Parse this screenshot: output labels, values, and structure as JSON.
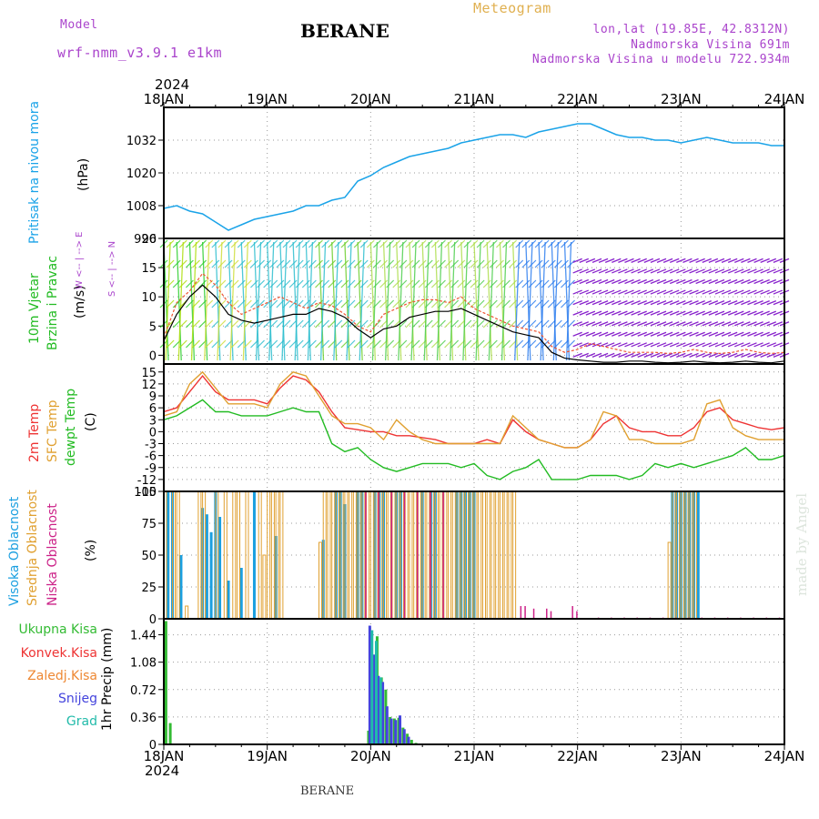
{
  "header": {
    "model_label": "Model",
    "model_name": "wrf-nmm_v3.9.1 e1km",
    "title": "BERANE",
    "meteogram_label": "Meteogram",
    "lonlat": "lon,lat (19.85E, 42.8312N)",
    "elevation": "Nadmorska Visina 691m",
    "model_elevation": "Nadmorska Visina u modelu 722.934m",
    "top_year": "2024",
    "bottom_year": "2024",
    "bottom_station": "BERANE",
    "watermark": "made by Angel"
  },
  "colors": {
    "pressure": "#1aa3e8",
    "wind_label": "#22bb22",
    "wind_dir": "#aa44cc",
    "temp_2m": "#ee3333",
    "temp_sfc": "#e0a030",
    "dewpoint": "#22bb22",
    "cloud_high": "#1a9fe0",
    "cloud_mid": "#e0a030",
    "cloud_low": "#cc2288",
    "rain_total": "#33bb33",
    "rain_conv": "#ee3333",
    "rain_strat": "#ee8833",
    "snow": "#4444dd",
    "graupel": "#22bbaa"
  },
  "x_axis": {
    "labels": [
      "18JAN",
      "19JAN",
      "20JAN",
      "21JAN",
      "22JAN",
      "23JAN",
      "24JAN"
    ]
  },
  "panels": {
    "pressure": {
      "label": "Pritisak na nivou mora",
      "unit": "(hPa)",
      "ticks": [
        "996",
        "1008",
        "1020",
        "1032"
      ]
    },
    "wind": {
      "label1": "10m Vjetar",
      "label2": "Brzina i Pravac",
      "unit": "(m/s)",
      "ticks": [
        "0",
        "5",
        "10",
        "15",
        "20"
      ],
      "compass": "W  <-- | --> E",
      "compass2": "S <-- | --> N"
    },
    "temperature": {
      "label1": "2m Temp",
      "label2": "SFC Temp",
      "label3": "dewpt Temp",
      "unit": "(C)",
      "ticks": [
        "-15",
        "-12",
        "-9",
        "-6",
        "-3",
        "0",
        "3",
        "6",
        "9",
        "12",
        "15"
      ]
    },
    "clouds": {
      "label1": "Visoka Oblacnost",
      "label2": "Srednja Oblacnost",
      "label3": "Niska Oblacnost",
      "unit": "(%)",
      "ticks": [
        "0",
        "25",
        "50",
        "75",
        "100"
      ]
    },
    "precip": {
      "unit": "1hr Precip (mm)",
      "ticks": [
        "0",
        "0.36",
        "0.72",
        "1.08",
        "1.44"
      ],
      "legend": [
        "Ukupna Kisa",
        "Konvek.Kisa",
        "Zaledj.Kisa",
        "Snijeg",
        "Grad"
      ]
    }
  },
  "chart_data": [
    {
      "type": "line",
      "title": "Pritisak na nivou mora",
      "ylabel": "(hPa)",
      "x_unit": "hours since 18JAN 00h",
      "ylim": [
        996,
        1044
      ],
      "series": [
        {
          "name": "Pritisak na nivou mora",
          "x": [
            0,
            3,
            6,
            9,
            12,
            15,
            18,
            21,
            24,
            27,
            30,
            33,
            36,
            39,
            42,
            45,
            48,
            51,
            54,
            57,
            60,
            63,
            66,
            69,
            72,
            75,
            78,
            81,
            84,
            87,
            90,
            93,
            96,
            99,
            102,
            105,
            108,
            111,
            114,
            117,
            120,
            123,
            126,
            129,
            132,
            135,
            138,
            141,
            144
          ],
          "values": [
            1007,
            1008,
            1006,
            1005,
            1002,
            999,
            1001,
            1003,
            1004,
            1005,
            1006,
            1008,
            1008,
            1010,
            1011,
            1017,
            1019,
            1022,
            1024,
            1026,
            1027,
            1028,
            1029,
            1031,
            1032,
            1033,
            1034,
            1034,
            1033,
            1035,
            1036,
            1037,
            1038,
            1038,
            1036,
            1034,
            1033,
            1033,
            1032,
            1032,
            1031,
            1032,
            1033,
            1032,
            1031,
            1031,
            1031,
            1030,
            1030
          ]
        }
      ]
    },
    {
      "type": "line",
      "title": "10m Vjetar Brzina i Pravac",
      "ylabel": "(m/s)",
      "x_unit": "hours since 18JAN 00h",
      "ylim": [
        -1.5,
        20
      ],
      "series": [
        {
          "name": "speed",
          "x": [
            0,
            3,
            6,
            9,
            12,
            15,
            18,
            21,
            24,
            27,
            30,
            33,
            36,
            39,
            42,
            45,
            48,
            51,
            54,
            57,
            60,
            63,
            66,
            69,
            72,
            75,
            78,
            81,
            84,
            87,
            90,
            93,
            96,
            99,
            102,
            105,
            108,
            111,
            114,
            117,
            120,
            123,
            126,
            129,
            132,
            135,
            138,
            141,
            144
          ],
          "values": [
            2.5,
            7,
            10,
            12,
            10,
            7,
            6,
            5.5,
            6,
            6.5,
            7,
            7,
            8,
            7.5,
            6.5,
            4.5,
            3,
            4.5,
            5,
            6.5,
            7,
            7.5,
            7.5,
            8,
            7,
            6,
            5,
            4,
            3.5,
            3,
            0.5,
            -0.5,
            -0.8,
            -1,
            -1.2,
            -1.2,
            -1,
            -1,
            -1.2,
            -1.3,
            -1.2,
            -1,
            -1.2,
            -1.3,
            -1.2,
            -1,
            -1.2,
            -1.3,
            -1
          ]
        },
        {
          "name": "gust",
          "x": [
            0,
            3,
            6,
            9,
            12,
            15,
            18,
            21,
            24,
            27,
            30,
            33,
            36,
            39,
            42,
            45,
            48,
            51,
            54,
            57,
            60,
            63,
            66,
            69,
            72,
            75,
            78,
            81,
            84,
            87,
            90,
            93,
            96,
            99,
            102,
            105,
            108,
            111,
            114,
            117,
            120,
            123,
            126,
            129,
            132,
            135,
            138,
            141,
            144
          ],
          "values": [
            3,
            9,
            11,
            14,
            12,
            9,
            7,
            8,
            9,
            10,
            9,
            8,
            9,
            8.5,
            7,
            5,
            4,
            7,
            8,
            9,
            9.5,
            9.5,
            9,
            10,
            8,
            7,
            6,
            5,
            4.5,
            4,
            1.5,
            0.5,
            1,
            2,
            1.5,
            1,
            0.5,
            0.5,
            0.5,
            0.3,
            0.5,
            1,
            0.5,
            0.3,
            0.5,
            1,
            0.5,
            0.3,
            0.5
          ]
        }
      ]
    },
    {
      "type": "line",
      "title": "2m Temp / SFC Temp / dewpt Temp",
      "ylabel": "(C)",
      "x_unit": "hours since 18JAN 00h",
      "ylim": [
        -15,
        17
      ],
      "series": [
        {
          "name": "2m Temp",
          "x": [
            0,
            3,
            6,
            9,
            12,
            15,
            18,
            21,
            24,
            27,
            30,
            33,
            36,
            39,
            42,
            45,
            48,
            51,
            54,
            57,
            60,
            63,
            66,
            69,
            72,
            75,
            78,
            81,
            84,
            87,
            90,
            93,
            96,
            99,
            102,
            105,
            108,
            111,
            114,
            117,
            120,
            123,
            126,
            129,
            132,
            135,
            138,
            141,
            144
          ],
          "values": [
            5,
            6,
            10,
            14,
            10,
            8,
            8,
            8,
            7,
            11,
            14,
            13,
            10,
            5,
            1,
            0.5,
            0,
            0,
            -1,
            -1,
            -1.5,
            -2,
            -3,
            -3,
            -3,
            -2,
            -3,
            3,
            0,
            -2,
            -3,
            -4,
            -4,
            -2,
            2,
            4,
            1,
            0,
            0,
            -1,
            -1,
            1,
            5,
            6,
            3,
            2,
            1,
            0.5,
            1
          ]
        },
        {
          "name": "SFC Temp",
          "x": [
            0,
            3,
            6,
            9,
            12,
            15,
            18,
            21,
            24,
            27,
            30,
            33,
            36,
            39,
            42,
            45,
            48,
            51,
            54,
            57,
            60,
            63,
            66,
            69,
            72,
            75,
            78,
            81,
            84,
            87,
            90,
            93,
            96,
            99,
            102,
            105,
            108,
            111,
            114,
            117,
            120,
            123,
            126,
            129,
            132,
            135,
            138,
            141,
            144
          ],
          "values": [
            4,
            5,
            12,
            15,
            11,
            7,
            7,
            7,
            6,
            12,
            15,
            14,
            9,
            4,
            2,
            2,
            1,
            -2,
            3,
            0,
            -2,
            -3,
            -3,
            -3,
            -3,
            -3,
            -3,
            4,
            1,
            -2,
            -3,
            -4,
            -4,
            -2,
            5,
            4,
            -2,
            -2,
            -3,
            -3,
            -3,
            -2,
            7,
            8,
            1,
            -1,
            -2,
            -2,
            -2
          ]
        },
        {
          "name": "dewpt Temp",
          "x": [
            0,
            3,
            6,
            9,
            12,
            15,
            18,
            21,
            24,
            27,
            30,
            33,
            36,
            39,
            42,
            45,
            48,
            51,
            54,
            57,
            60,
            63,
            66,
            69,
            72,
            75,
            78,
            81,
            84,
            87,
            90,
            93,
            96,
            99,
            102,
            105,
            108,
            111,
            114,
            117,
            120,
            123,
            126,
            129,
            132,
            135,
            138,
            141,
            144
          ],
          "values": [
            3,
            4,
            6,
            8,
            5,
            5,
            4,
            4,
            4,
            5,
            6,
            5,
            5,
            -3,
            -5,
            -4,
            -7,
            -9,
            -10,
            -9,
            -8,
            -8,
            -8,
            -9,
            -8,
            -11,
            -12,
            -10,
            -9,
            -7,
            -12,
            -12,
            -12,
            -11,
            -11,
            -11,
            -12,
            -11,
            -8,
            -9,
            -8,
            -9,
            -8,
            -7,
            -6,
            -4,
            -7,
            -7,
            -6
          ]
        }
      ]
    },
    {
      "type": "bar",
      "title": "Visoka / Srednja / Niska Oblacnost",
      "ylabel": "(%)",
      "x_unit": "hours since 18JAN 00h",
      "ylim": [
        0,
        100
      ],
      "series": [
        {
          "name": "Visoka Oblacnost",
          "x": [
            1,
            2,
            4,
            9,
            10,
            11,
            12,
            13,
            15,
            18,
            21,
            26,
            37,
            40,
            41,
            42,
            45,
            46,
            49,
            50,
            51,
            54,
            55,
            60,
            62,
            63,
            68,
            69,
            70,
            71,
            72,
            118,
            119,
            120,
            121,
            122,
            123,
            124
          ],
          "values": [
            100,
            100,
            50,
            87,
            82,
            68,
            100,
            80,
            30,
            40,
            100,
            65,
            62,
            100,
            100,
            90,
            100,
            100,
            100,
            100,
            100,
            100,
            100,
            100,
            100,
            100,
            100,
            100,
            100,
            100,
            100,
            100,
            100,
            100,
            100,
            100,
            100,
            100
          ]
        },
        {
          "name": "Srednja Oblacnost",
          "x": [
            0,
            2,
            3,
            5,
            8,
            9,
            12,
            14,
            16,
            17,
            19,
            22,
            23,
            24,
            25,
            26,
            27,
            36,
            37,
            38,
            39,
            40,
            41,
            42,
            43,
            44,
            45,
            46,
            47,
            48,
            49,
            50,
            51,
            52,
            53,
            54,
            55,
            56,
            57,
            58,
            59,
            60,
            61,
            62,
            63,
            64,
            65,
            66,
            67,
            68,
            69,
            70,
            71,
            72,
            73,
            74,
            75,
            76,
            77,
            78,
            79,
            80,
            81,
            117,
            118,
            119,
            120,
            121,
            122,
            123
          ],
          "values": [
            100,
            100,
            100,
            10,
            100,
            100,
            100,
            100,
            100,
            100,
            100,
            100,
            50,
            100,
            100,
            100,
            100,
            60,
            100,
            100,
            100,
            100,
            100,
            100,
            100,
            100,
            100,
            100,
            100,
            100,
            100,
            100,
            100,
            100,
            100,
            100,
            100,
            100,
            100,
            100,
            100,
            100,
            100,
            100,
            100,
            100,
            100,
            100,
            100,
            100,
            100,
            100,
            100,
            100,
            100,
            100,
            100,
            100,
            100,
            100,
            100,
            100,
            100,
            60,
            100,
            100,
            100,
            100,
            100,
            100
          ]
        },
        {
          "name": "Niska Oblacnost",
          "x": [
            47,
            50,
            53,
            56,
            59,
            62,
            65,
            83,
            84,
            86,
            89,
            90,
            95,
            96,
            101,
            104,
            107,
            110,
            113,
            116,
            119,
            122,
            125,
            128,
            131,
            134,
            137,
            140,
            143
          ],
          "values": [
            100,
            100,
            100,
            100,
            100,
            100,
            100,
            10,
            10,
            8,
            8,
            6,
            10,
            6,
            1,
            1,
            1,
            1,
            1,
            1,
            1,
            1,
            1,
            1,
            1,
            1,
            1,
            1,
            1
          ]
        }
      ]
    },
    {
      "type": "bar",
      "title": "1hr Precip",
      "ylabel": "1hr Precip (mm)",
      "x_unit": "hours since 18JAN 00h",
      "ylim": [
        0,
        1.65
      ],
      "series": [
        {
          "name": "Ukupna Kisa",
          "x": [
            0.5,
            1.5,
            47.5,
            48.5,
            49.5,
            50.5,
            51.5,
            52.5,
            53.5,
            54.5,
            55.5,
            56.5,
            57.5,
            58.5
          ],
          "values": [
            1.62,
            0.28,
            0.18,
            0.5,
            1.42,
            0.88,
            0.72,
            0.36,
            0.34,
            0.35,
            0.22,
            0.14,
            0.06,
            0.02
          ]
        },
        {
          "name": "Snijeg",
          "x": [
            47.8,
            48.8,
            49.8,
            50.8,
            51.8,
            52.8,
            53.8,
            54.8,
            55.8,
            56.8
          ],
          "values": [
            1.56,
            1.18,
            0.9,
            0.82,
            0.5,
            0.34,
            0.32,
            0.38,
            0.2,
            0.1
          ]
        },
        {
          "name": "Grad",
          "x": [
            48.3,
            49.3,
            50.3
          ],
          "values": [
            1.5,
            1.36,
            0.88
          ]
        }
      ]
    }
  ]
}
